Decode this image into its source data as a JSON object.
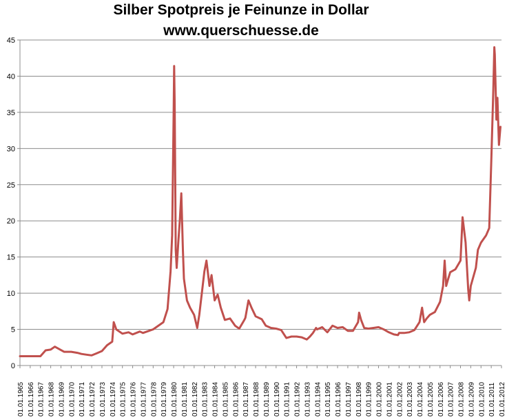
{
  "chart_data": {
    "type": "line",
    "title": "Silber Spotpreis je Feinunze in Dollar",
    "subtitle": "www.querschuesse.de",
    "xlabel": "",
    "ylabel": "",
    "ylim": [
      0,
      45
    ],
    "y_ticks": [
      0,
      5,
      10,
      15,
      20,
      25,
      30,
      35,
      40,
      45
    ],
    "grid": true,
    "legend": "none",
    "line_color": "#C0504D",
    "x_tick_labels": [
      "01.01.1965",
      "01.01.1966",
      "01.01.1967",
      "01.01.1968",
      "01.01.1969",
      "01.01.1970",
      "01.01.1971",
      "01.01.1972",
      "01.01.1973",
      "01.01.1974",
      "01.01.1975",
      "01.01.1976",
      "01.01.1977",
      "01.01.1978",
      "01.01.1979",
      "01.01.1980",
      "01.01.1981",
      "01.01.1982",
      "01.01.1983",
      "01.01.1984",
      "01.01.1985",
      "01.01.1986",
      "01.01.1987",
      "01.01.1988",
      "01.01.1989",
      "01.01.1990",
      "01.01.1991",
      "01.01.1992",
      "01.01.1993",
      "01.01.1994",
      "01.01.1995",
      "01.01.1996",
      "01.01.1997",
      "01.01.1998",
      "01.01.1999",
      "01.01.2000",
      "01.01.2001",
      "01.01.2002",
      "01.01.2003",
      "01.01.2004",
      "01.01.2005",
      "01.01.2006",
      "01.01.2007",
      "01.01.2008",
      "01.01.2009",
      "01.01.2010",
      "01.01.2011",
      "01.01.2012"
    ],
    "series": [
      {
        "x": [
          1965.0,
          1967.0,
          1967.5,
          1968.0,
          1968.4,
          1968.8,
          1969.3,
          1970.0,
          1970.6,
          1971.0,
          1971.5,
          1972.0,
          1972.5,
          1973.0,
          1973.5,
          1974.0,
          1974.15,
          1974.4,
          1975.0,
          1975.6,
          1976.0,
          1976.7,
          1977.0,
          1978.0,
          1979.0,
          1979.4,
          1979.7,
          1979.85,
          1980.0,
          1980.05,
          1980.1,
          1980.2,
          1980.3,
          1980.45,
          1980.6,
          1980.75,
          1980.9,
          1981.0,
          1981.3,
          1981.6,
          1982.0,
          1982.3,
          1982.5,
          1982.75,
          1983.0,
          1983.2,
          1983.5,
          1983.7,
          1984.0,
          1984.3,
          1984.6,
          1985.0,
          1985.5,
          1986.0,
          1986.4,
          1986.9,
          1987.0,
          1987.3,
          1987.6,
          1988.0,
          1988.6,
          1989.0,
          1989.5,
          1990.0,
          1990.5,
          1991.0,
          1991.5,
          1992.0,
          1992.5,
          1993.0,
          1993.3,
          1993.6,
          1993.9,
          1994.0,
          1994.5,
          1995.0,
          1995.5,
          1996.0,
          1996.5,
          1997.0,
          1997.5,
          1998.0,
          1998.1,
          1998.3,
          1998.6,
          1999.0,
          1999.5,
          2000.0,
          2000.5,
          2001.0,
          2001.5,
          2001.9,
          2002.0,
          2002.5,
          2003.0,
          2003.5,
          2004.0,
          2004.25,
          2004.45,
          2004.7,
          2005.0,
          2005.5,
          2006.0,
          2006.3,
          2006.45,
          2006.6,
          2006.8,
          2007.0,
          2007.5,
          2008.0,
          2008.2,
          2008.5,
          2008.75,
          2008.85,
          2009.0,
          2009.5,
          2009.7,
          2010.0,
          2010.5,
          2010.8,
          2011.0,
          2011.1,
          2011.2,
          2011.3,
          2011.35,
          2011.5,
          2011.6,
          2011.75,
          2011.9
        ],
        "y": [
          1.29,
          1.29,
          2.1,
          2.2,
          2.6,
          2.3,
          1.9,
          1.9,
          1.75,
          1.6,
          1.5,
          1.4,
          1.7,
          2.0,
          2.8,
          3.3,
          6.0,
          5.0,
          4.4,
          4.6,
          4.3,
          4.7,
          4.5,
          5.0,
          6.0,
          7.8,
          13.0,
          18.0,
          35.0,
          41.4,
          36.0,
          16.0,
          13.5,
          17.0,
          20.0,
          23.8,
          16.0,
          12.0,
          9.0,
          8.0,
          7.0,
          5.2,
          7.0,
          10.0,
          13.0,
          14.5,
          11.0,
          12.5,
          9.0,
          9.8,
          8.0,
          6.3,
          6.5,
          5.5,
          5.1,
          6.3,
          6.6,
          9.0,
          8.0,
          6.8,
          6.4,
          5.5,
          5.2,
          5.1,
          4.9,
          3.8,
          4.0,
          4.0,
          3.9,
          3.6,
          4.0,
          4.5,
          5.2,
          5.0,
          5.3,
          4.6,
          5.5,
          5.2,
          5.3,
          4.8,
          4.8,
          6.0,
          7.3,
          6.3,
          5.2,
          5.1,
          5.2,
          5.3,
          5.0,
          4.6,
          4.3,
          4.2,
          4.5,
          4.5,
          4.6,
          4.9,
          6.0,
          8.0,
          6.0,
          6.5,
          7.0,
          7.4,
          8.8,
          11.0,
          14.5,
          11.0,
          12.0,
          12.9,
          13.3,
          14.5,
          20.5,
          17.0,
          10.5,
          9.0,
          11.0,
          13.5,
          16.0,
          17.0,
          18.0,
          19.0,
          28.0,
          33.0,
          38.0,
          44.0,
          43.0,
          34.0,
          37.0,
          30.5,
          33.0
        ]
      }
    ]
  }
}
